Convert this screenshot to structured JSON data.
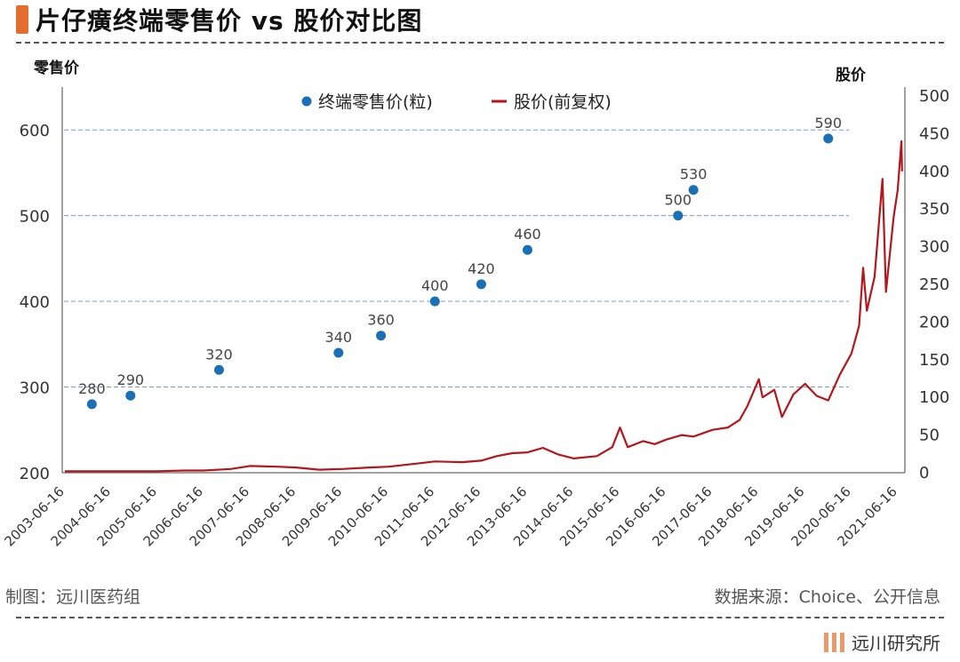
{
  "title": "片仔癀终端零售价 vs 股价对比图",
  "footer": {
    "left": "制图：远川医药组",
    "right": "数据来源：Choice、公开信息"
  },
  "brand": "远川研究所",
  "colors": {
    "accent": "#e36c2f",
    "dot": "#1a6fb5",
    "line": "#b5161b"
  },
  "chart_data": {
    "type": "scatter+line",
    "y_left_label": "零售价",
    "y_right_label": "股价",
    "y_left_range": [
      200,
      650
    ],
    "y_left_ticks": [
      "600",
      "500",
      "400",
      "300",
      "200"
    ],
    "y_right_range": [
      0,
      500
    ],
    "y_right_ticks": [
      "500",
      "450",
      "400",
      "350",
      "300",
      "250",
      "200",
      "150",
      "100",
      "50",
      "0"
    ],
    "x_ticks": [
      "2003-06-16",
      "2004-06-16",
      "2005-06-16",
      "2006-06-16",
      "2007-06-16",
      "2008-06-16",
      "2009-06-16",
      "2010-06-16",
      "2011-06-16",
      "2012-06-16",
      "2013-06-16",
      "2014-06-16",
      "2015-06-16",
      "2016-06-16",
      "2017-06-16",
      "2018-06-16",
      "2019-06-16",
      "2020-06-16",
      "2021-06-16"
    ],
    "legend": [
      {
        "name": "终端零售价(粒)",
        "marker": "dot"
      },
      {
        "name": "股价(前复权)",
        "marker": "line"
      }
    ],
    "retail_price": [
      {
        "x": "2004-01",
        "y": 280,
        "label": "280"
      },
      {
        "x": "2004-11",
        "y": 290,
        "label": "290"
      },
      {
        "x": "2006-10",
        "y": 320,
        "label": "320"
      },
      {
        "x": "2009-05",
        "y": 340,
        "label": "340"
      },
      {
        "x": "2010-04",
        "y": 360,
        "label": "360"
      },
      {
        "x": "2011-06",
        "y": 400,
        "label": "400"
      },
      {
        "x": "2012-06",
        "y": 420,
        "label": "420"
      },
      {
        "x": "2013-06",
        "y": 460,
        "label": "460"
      },
      {
        "x": "2016-09",
        "y": 500,
        "label": "500"
      },
      {
        "x": "2017-01",
        "y": 530,
        "label": "530"
      },
      {
        "x": "2019-12",
        "y": 590,
        "label": "590"
      }
    ],
    "stock_price": [
      [
        "2003-06",
        2
      ],
      [
        "2004-06",
        2
      ],
      [
        "2005-06",
        2
      ],
      [
        "2006-01",
        3
      ],
      [
        "2006-06",
        3
      ],
      [
        "2007-01",
        5
      ],
      [
        "2007-06",
        9
      ],
      [
        "2008-01",
        8
      ],
      [
        "2008-06",
        7
      ],
      [
        "2008-12",
        4
      ],
      [
        "2009-06",
        5
      ],
      [
        "2010-01",
        7
      ],
      [
        "2010-06",
        8
      ],
      [
        "2011-01",
        12
      ],
      [
        "2011-06",
        15
      ],
      [
        "2012-01",
        14
      ],
      [
        "2012-06",
        16
      ],
      [
        "2012-10",
        22
      ],
      [
        "2013-02",
        26
      ],
      [
        "2013-06",
        27
      ],
      [
        "2013-10",
        33
      ],
      [
        "2014-02",
        24
      ],
      [
        "2014-06",
        19
      ],
      [
        "2014-12",
        22
      ],
      [
        "2015-04",
        34
      ],
      [
        "2015-06",
        60
      ],
      [
        "2015-08",
        34
      ],
      [
        "2015-12",
        42
      ],
      [
        "2016-03",
        38
      ],
      [
        "2016-06",
        44
      ],
      [
        "2016-10",
        50
      ],
      [
        "2017-01",
        48
      ],
      [
        "2017-06",
        57
      ],
      [
        "2017-10",
        60
      ],
      [
        "2018-01",
        70
      ],
      [
        "2018-03",
        88
      ],
      [
        "2018-06",
        124
      ],
      [
        "2018-07",
        100
      ],
      [
        "2018-10",
        110
      ],
      [
        "2018-12",
        74
      ],
      [
        "2019-03",
        104
      ],
      [
        "2019-06",
        118
      ],
      [
        "2019-09",
        102
      ],
      [
        "2019-12",
        96
      ],
      [
        "2020-03",
        130
      ],
      [
        "2020-06",
        158
      ],
      [
        "2020-08",
        195
      ],
      [
        "2020-09",
        272
      ],
      [
        "2020-10",
        215
      ],
      [
        "2020-12",
        260
      ],
      [
        "2021-02",
        390
      ],
      [
        "2021-03",
        240
      ],
      [
        "2021-05",
        340
      ],
      [
        "2021-06",
        375
      ],
      [
        "2021-07",
        440
      ],
      [
        "2021-07-20",
        400
      ]
    ]
  }
}
